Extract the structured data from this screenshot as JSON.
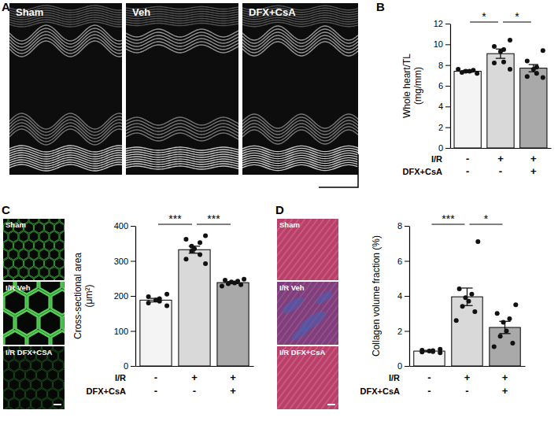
{
  "chart_data": [
    {
      "type": "bar",
      "panel_label": "B",
      "ylabel": [
        "Whole heart/TL",
        "(mg/mm)"
      ],
      "categories": [
        null,
        null,
        null
      ],
      "condition_rows": [
        {
          "label": "I/R",
          "values": [
            "-",
            "+",
            "+"
          ]
        },
        {
          "label": "DFX+CsA",
          "values": [
            "-",
            "-",
            "+"
          ]
        }
      ],
      "values": [
        7.4,
        9.1,
        7.7
      ],
      "errors": [
        0.1,
        0.45,
        0.35
      ],
      "points": [
        [
          7.2,
          7.3,
          7.4,
          7.4,
          7.5,
          7.6
        ],
        [
          10.4,
          9.8,
          9.5,
          9.3,
          8.3,
          8.2,
          7.6
        ],
        [
          9.4,
          8.4,
          7.8,
          7.6,
          7.2,
          6.9,
          6.8
        ]
      ],
      "colors": [
        "#f4f4f4",
        "#d9d9d9",
        "#a9a9a9"
      ],
      "ylim": [
        0,
        12
      ],
      "yticks": [
        0,
        2,
        4,
        6,
        8,
        10,
        12
      ],
      "annotations": [
        {
          "from": 0,
          "to": 1,
          "label": "*"
        },
        {
          "from": 1,
          "to": 2,
          "label": "*"
        }
      ]
    },
    {
      "type": "bar",
      "panel_label": "C",
      "ylabel": [
        "Cross-sectional area",
        "(μm²)"
      ],
      "categories": [
        null,
        null,
        null
      ],
      "condition_rows": [
        {
          "label": "I/R",
          "values": [
            "-",
            "+",
            "+"
          ]
        },
        {
          "label": "DFX+CsA",
          "values": [
            "-",
            "-",
            "+"
          ]
        }
      ],
      "values": [
        188,
        332,
        238
      ],
      "errors": [
        5,
        10,
        3
      ],
      "points": [
        [
          205,
          198,
          192,
          188,
          185,
          180,
          172
        ],
        [
          372,
          362,
          352,
          342,
          335,
          328,
          318,
          305,
          292
        ],
        [
          248,
          245,
          242,
          240,
          237,
          235,
          232,
          228
        ]
      ],
      "colors": [
        "#f4f4f4",
        "#d9d9d9",
        "#a9a9a9"
      ],
      "ylim": [
        0,
        400
      ],
      "yticks": [
        0,
        100,
        200,
        300,
        400
      ],
      "annotations": [
        {
          "from": 0,
          "to": 1,
          "label": "***"
        },
        {
          "from": 1,
          "to": 2,
          "label": "***"
        }
      ]
    },
    {
      "type": "bar",
      "panel_label": "D",
      "ylabel": [
        "Collagen volume fraction (%)"
      ],
      "categories": [
        null,
        null,
        null
      ],
      "condition_rows": [
        {
          "label": "I/R",
          "values": [
            "-",
            "+",
            "+"
          ]
        },
        {
          "label": "DFX+CsA",
          "values": [
            "-",
            "-",
            "+"
          ]
        }
      ],
      "values": [
        0.85,
        3.95,
        2.2
      ],
      "errors": [
        0.04,
        0.5,
        0.35
      ],
      "points": [
        [
          0.95,
          0.9,
          0.88,
          0.85,
          0.82,
          0.8,
          0.75
        ],
        [
          7.1,
          4.4,
          4.1,
          3.9,
          3.7,
          3.4,
          3.1,
          2.6
        ],
        [
          3.5,
          3.0,
          2.7,
          2.5,
          2.0,
          1.7,
          1.3,
          1.1
        ]
      ],
      "colors": [
        "#f4f4f4",
        "#d9d9d9",
        "#a9a9a9"
      ],
      "ylim": [
        0,
        8
      ],
      "yticks": [
        0,
        2,
        4,
        6,
        8
      ],
      "annotations": [
        {
          "from": 0,
          "to": 1,
          "label": "***"
        },
        {
          "from": 1,
          "to": 2,
          "label": "*"
        }
      ]
    }
  ],
  "images": {
    "echo": {
      "panel_label": "A",
      "labels": [
        "Sham",
        "Veh",
        "DFX+CsA"
      ]
    },
    "fluorescence": {
      "labels": [
        "Sham",
        "I/R Veh",
        "I/R DFX+CSA"
      ]
    },
    "trichrome": {
      "labels": [
        "Sham",
        "I/R Veh",
        "I/R DFX+CsA"
      ]
    }
  }
}
